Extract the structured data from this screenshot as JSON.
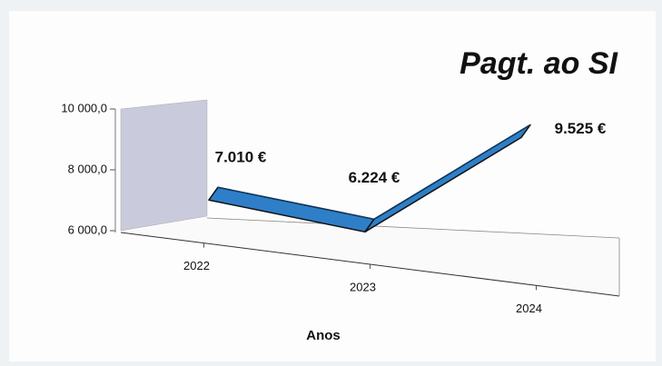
{
  "chart_data": {
    "type": "line3d",
    "title": "Pagt. ao SI",
    "x_label": "Anos",
    "categories": [
      "2022",
      "2023",
      "2024"
    ],
    "series": [
      {
        "name": "Pagt. ao SI",
        "color": "#2e7fc8",
        "values": [
          7010,
          6224,
          9525
        ],
        "value_labels": [
          "7.010 €",
          "6.224 €",
          "9.525 €"
        ]
      }
    ],
    "ylim": [
      6000,
      10000
    ],
    "yticks": [
      {
        "value": 6000,
        "label": "6 000,0"
      },
      {
        "value": 8000,
        "label": "8 000,0"
      },
      {
        "value": 10000,
        "label": "10 000,0"
      }
    ]
  }
}
